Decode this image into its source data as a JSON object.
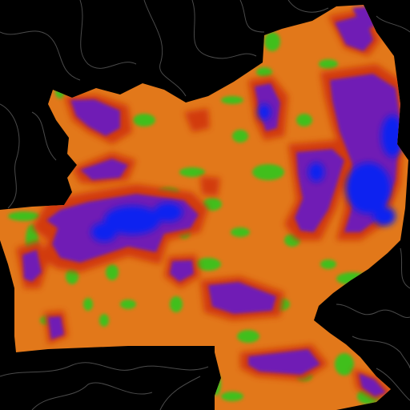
{
  "map": {
    "background_color": "#000000",
    "border_color": "#4a4a4a",
    "palette": {
      "base": "#e2781a",
      "green": "#3fbf1c",
      "red": "#d23a10",
      "purple": "#6f1cb5",
      "blue": "#1020f0"
    }
  }
}
